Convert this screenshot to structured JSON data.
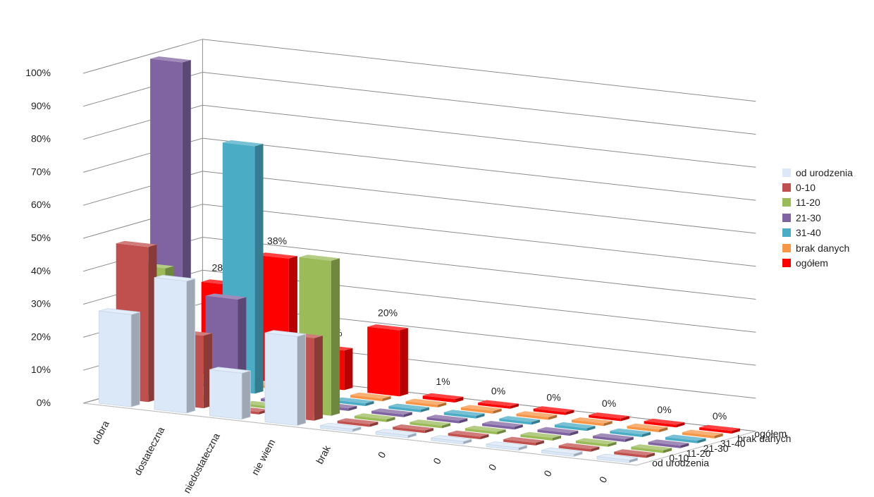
{
  "chart_data": {
    "type": "bar",
    "subtype": "3d-column",
    "title": "",
    "xlabel": "",
    "ylabel": "",
    "ylim": [
      0,
      100
    ],
    "y_ticks": [
      "0%",
      "10%",
      "20%",
      "30%",
      "40%",
      "50%",
      "60%",
      "70%",
      "80%",
      "90%",
      "100%"
    ],
    "categories": [
      "dobra",
      "dostateczna",
      "niedostateczna",
      "nie wiem",
      "brak",
      "0",
      "0",
      "0",
      "0",
      "0"
    ],
    "depth_labels": [
      "od urodzenia",
      "0-10",
      "11-20",
      "21-30",
      "31-40",
      "brak danych",
      "ogółem"
    ],
    "legend_position": "right",
    "series": [
      {
        "name": "od urodzenia",
        "color": "#dbe8f8",
        "values": [
          28,
          40,
          14,
          27,
          0,
          0,
          0,
          0,
          0,
          0
        ]
      },
      {
        "name": "0-10",
        "color": "#c0504d",
        "values": [
          47,
          22,
          0,
          25,
          0,
          0,
          0,
          0,
          0,
          0
        ]
      },
      {
        "name": "11-20",
        "color": "#9bbb59",
        "values": [
          39,
          0,
          0,
          47,
          0,
          0,
          0,
          0,
          0,
          0
        ]
      },
      {
        "name": "21-30",
        "color": "#8064a2",
        "values": [
          100,
          30,
          0,
          0,
          0,
          0,
          0,
          0,
          0,
          0
        ]
      },
      {
        "name": "31-40",
        "color": "#4bacc6",
        "values": [
          0,
          75,
          0,
          0,
          0,
          0,
          0,
          0,
          0,
          0
        ]
      },
      {
        "name": "brak danych",
        "color": "#f79646",
        "values": [
          0,
          0,
          0,
          0,
          0,
          0,
          0,
          0,
          0,
          0
        ]
      },
      {
        "name": "ogółem",
        "color": "#ff0000",
        "values": [
          28,
          38,
          12,
          20,
          1,
          0,
          0,
          0,
          0,
          0
        ],
        "data_labels": [
          "28%",
          "38%",
          "12%",
          "20%",
          "1%",
          "0%",
          "0%",
          "0%",
          "0%",
          "0%"
        ]
      }
    ]
  }
}
